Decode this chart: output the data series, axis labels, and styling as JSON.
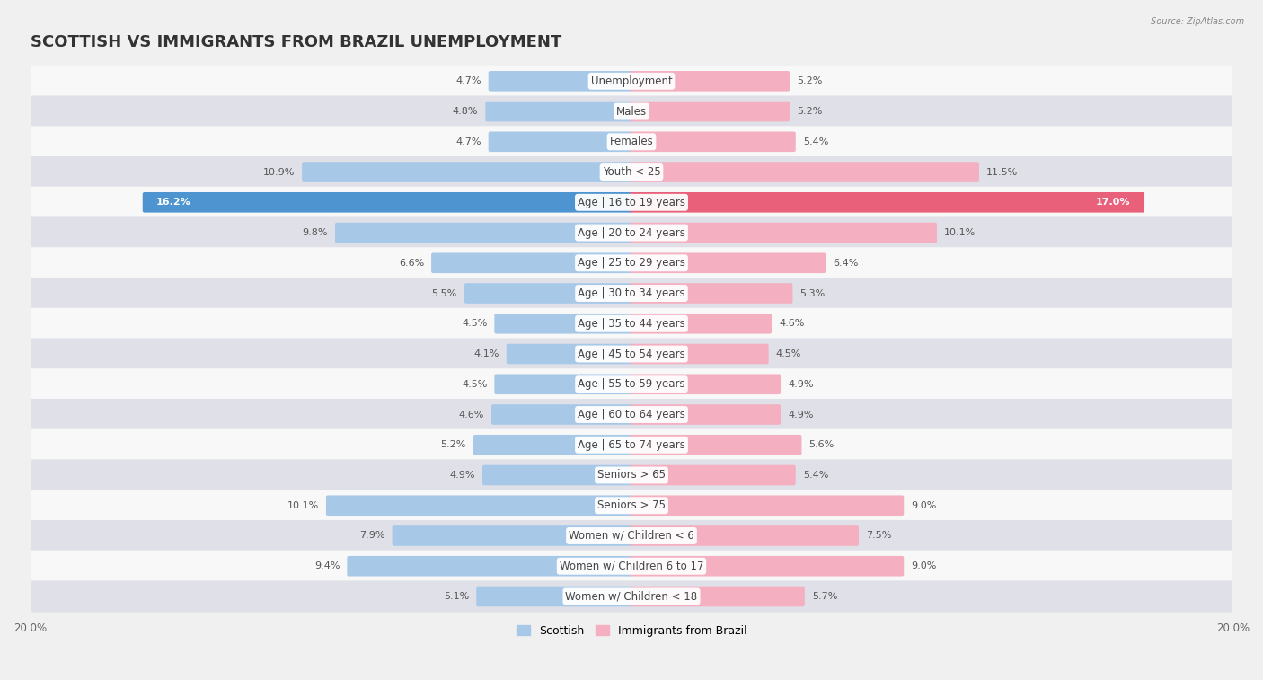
{
  "title": "SCOTTISH VS IMMIGRANTS FROM BRAZIL UNEMPLOYMENT",
  "source": "Source: ZipAtlas.com",
  "categories": [
    "Unemployment",
    "Males",
    "Females",
    "Youth < 25",
    "Age | 16 to 19 years",
    "Age | 20 to 24 years",
    "Age | 25 to 29 years",
    "Age | 30 to 34 years",
    "Age | 35 to 44 years",
    "Age | 45 to 54 years",
    "Age | 55 to 59 years",
    "Age | 60 to 64 years",
    "Age | 65 to 74 years",
    "Seniors > 65",
    "Seniors > 75",
    "Women w/ Children < 6",
    "Women w/ Children 6 to 17",
    "Women w/ Children < 18"
  ],
  "scottish": [
    4.7,
    4.8,
    4.7,
    10.9,
    16.2,
    9.8,
    6.6,
    5.5,
    4.5,
    4.1,
    4.5,
    4.6,
    5.2,
    4.9,
    10.1,
    7.9,
    9.4,
    5.1
  ],
  "brazil": [
    5.2,
    5.2,
    5.4,
    11.5,
    17.0,
    10.1,
    6.4,
    5.3,
    4.6,
    4.5,
    4.9,
    4.9,
    5.6,
    5.4,
    9.0,
    7.5,
    9.0,
    5.7
  ],
  "scottish_color": "#a8c8e8",
  "brazil_color": "#f4afc0",
  "scottish_highlight": "#4d94d0",
  "brazil_highlight": "#e8607a",
  "xlim": 20.0,
  "bg_color": "#f0f0f0",
  "row_gray_color": "#e0e0e8",
  "row_white_color": "#f8f8f8",
  "title_fontsize": 13,
  "label_fontsize": 8.5,
  "value_fontsize": 8.0,
  "legend_label_scottish": "Scottish",
  "legend_label_brazil": "Immigrants from Brazil"
}
